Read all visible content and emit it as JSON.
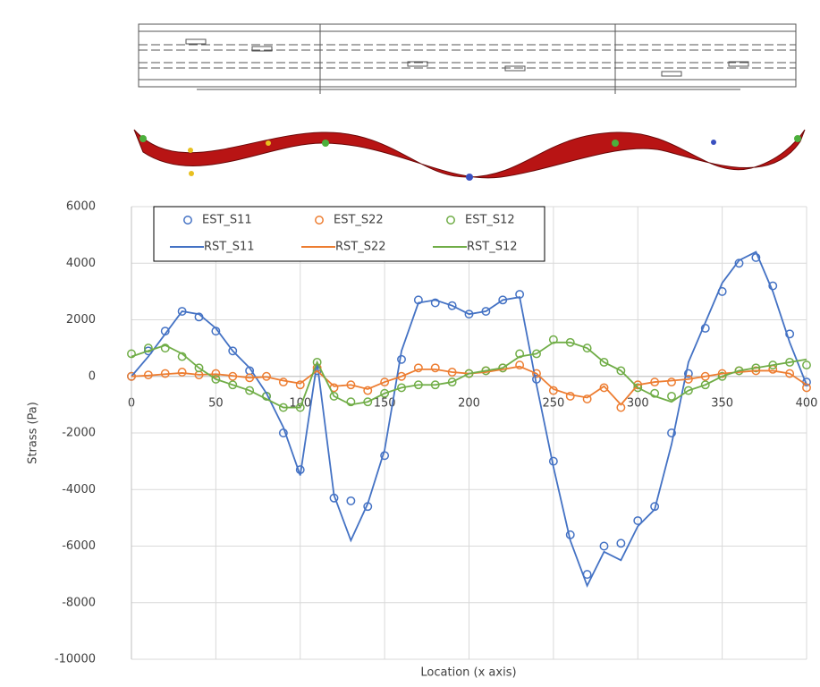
{
  "chart_data": {
    "type": "line",
    "y_label": "Strass (Pa)",
    "x_label": "Location (x axis)",
    "xlim": [
      0,
      400
    ],
    "xticks": [
      0,
      50,
      100,
      150,
      200,
      250,
      300,
      350,
      400
    ],
    "ylim": [
      -10000,
      6000
    ],
    "yticks": [
      -10000,
      -8000,
      -6000,
      -4000,
      -2000,
      0,
      2000,
      4000,
      6000
    ],
    "grid": true,
    "legend_position": "upper left",
    "x": [
      0,
      10,
      20,
      30,
      40,
      50,
      60,
      70,
      80,
      90,
      100,
      110,
      120,
      130,
      140,
      150,
      160,
      170,
      180,
      190,
      200,
      210,
      220,
      230,
      240,
      250,
      260,
      270,
      280,
      290,
      300,
      310,
      320,
      330,
      340,
      350,
      360,
      370,
      380,
      390,
      400
    ],
    "series": [
      {
        "name": "EST_S11",
        "color": "#4472c4",
        "marker": true,
        "values": [
          0,
          900,
          1600,
          2300,
          2100,
          1600,
          900,
          200,
          -700,
          -2000,
          -3300,
          200,
          -4300,
          -4400,
          -4600,
          -2800,
          600,
          2700,
          2600,
          2500,
          2200,
          2300,
          2700,
          2900,
          -100,
          -3000,
          -5600,
          -7000,
          -6000,
          -5900,
          -5100,
          -4600,
          -2000,
          100,
          1700,
          3000,
          4000,
          4200,
          3200,
          1500,
          -200
        ]
      },
      {
        "name": "EST_S22",
        "color": "#ed7d31",
        "marker": true,
        "values": [
          0,
          50,
          100,
          150,
          50,
          100,
          0,
          -50,
          0,
          -200,
          -300,
          300,
          -400,
          -300,
          -500,
          -200,
          0,
          300,
          300,
          150,
          100,
          200,
          300,
          400,
          100,
          -500,
          -700,
          -800,
          -400,
          -1100,
          -300,
          -200,
          -200,
          -100,
          0,
          100,
          200,
          200,
          250,
          100,
          -400
        ]
      },
      {
        "name": "EST_S12",
        "color": "#70ad47",
        "marker": true,
        "values": [
          800,
          1000,
          1000,
          700,
          300,
          -100,
          -300,
          -500,
          -700,
          -1100,
          -1100,
          500,
          -700,
          -900,
          -900,
          -600,
          -400,
          -300,
          -300,
          -200,
          100,
          200,
          300,
          800,
          800,
          1300,
          1200,
          1000,
          500,
          200,
          -400,
          -600,
          -700,
          -500,
          -300,
          0,
          200,
          300,
          400,
          500,
          400
        ]
      },
      {
        "name": "RST_S11",
        "color": "#4472c4",
        "marker": false,
        "values": [
          0,
          700,
          1500,
          2300,
          2200,
          1700,
          900,
          300,
          -600,
          -1800,
          -3500,
          500,
          -4200,
          -5800,
          -4500,
          -2600,
          900,
          2600,
          2700,
          2500,
          2200,
          2300,
          2700,
          2800,
          -300,
          -3200,
          -5800,
          -7400,
          -6200,
          -6500,
          -5300,
          -4700,
          -2400,
          500,
          1900,
          3300,
          4100,
          4400,
          3000,
          1200,
          -300
        ]
      },
      {
        "name": "RST_S22",
        "color": "#ed7d31",
        "marker": false,
        "values": [
          0,
          30,
          80,
          120,
          60,
          80,
          20,
          -50,
          -20,
          -150,
          -250,
          200,
          -350,
          -300,
          -450,
          -200,
          0,
          250,
          250,
          150,
          100,
          150,
          250,
          350,
          100,
          -450,
          -650,
          -750,
          -350,
          -1000,
          -300,
          -200,
          -150,
          -100,
          0,
          100,
          150,
          200,
          200,
          100,
          -300
        ]
      },
      {
        "name": "RST_S12",
        "color": "#70ad47",
        "marker": false,
        "values": [
          700,
          900,
          1100,
          800,
          300,
          -100,
          -300,
          -500,
          -800,
          -1100,
          -1100,
          500,
          -700,
          -1000,
          -900,
          -600,
          -400,
          -300,
          -300,
          -200,
          100,
          200,
          300,
          700,
          800,
          1200,
          1200,
          1000,
          500,
          200,
          -400,
          -700,
          -900,
          -500,
          -300,
          0,
          200,
          300,
          400,
          500,
          600
        ]
      }
    ]
  }
}
